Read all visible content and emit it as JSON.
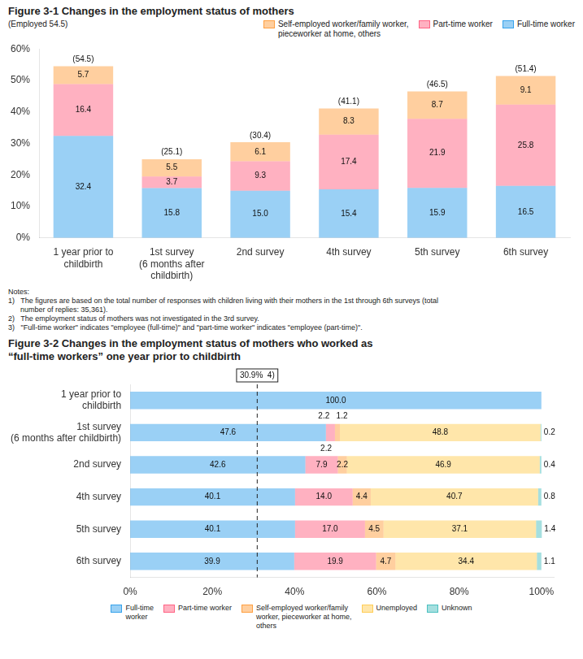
{
  "chart_data": [
    {
      "type": "bar",
      "title": "Figure 3-1  Changes in the employment status of mothers",
      "categories": [
        "1 year prior to\nchildbirth",
        "1st survey\n(6 months after\nchildbirth)",
        "2nd survey",
        "4th survey",
        "5th survey",
        "6th survey"
      ],
      "series": [
        {
          "name": "Full-time worker",
          "values": [
            32.4,
            15.8,
            15.0,
            15.4,
            15.9,
            16.5
          ],
          "value_labels": [
            "32.4",
            "15.8",
            "15.0",
            "15.4",
            "15.9",
            "16.5"
          ]
        },
        {
          "name": "Part-time worker",
          "values": [
            16.4,
            3.7,
            9.3,
            17.4,
            21.9,
            25.8
          ]
        },
        {
          "name": "Self-employed worker/family worker,\npieceworker at home, others",
          "values": [
            5.7,
            5.5,
            6.1,
            8.3,
            8.7,
            9.1
          ]
        }
      ],
      "totals": [
        54.5,
        25.1,
        30.4,
        41.1,
        46.5,
        51.4
      ],
      "total_labels": [
        "(54.5)",
        "(25.1)",
        "(30.4)",
        "(41.1)",
        "(46.5)",
        "(51.4)"
      ],
      "annotations": [
        "(Employed 54.5)"
      ],
      "notes": [
        "Notes:",
        "1)   The figures are based on the total number of responses with children living with their mothers in the 1st through 6th surveys (total",
        "      number of replies: 35,361).",
        "2)   The employment status of mothers was not investigated in the 3rd survey.",
        "3)   \"Full-time worker\" indicates \"employee (full-time)\" and \"part-time worker\" indicates \"employee (part-time)\"."
      ],
      "stacked": true,
      "data_labels": true,
      "grid": false,
      "legend": "upper right",
      "ylim": [
        0,
        60
      ],
      "yticks": [
        {
          "value": 0,
          "label": "0%"
        },
        {
          "value": 10,
          "label": "10%"
        },
        {
          "value": 20,
          "label": "20%"
        },
        {
          "value": 30,
          "label": "30%"
        },
        {
          "value": 40,
          "label": "40%"
        },
        {
          "value": 50,
          "label": "50%"
        },
        {
          "value": 60,
          "label": "60%"
        }
      ]
    },
    {
      "type": "bar",
      "orientation": "horizontal",
      "title": [
        "Figure 3-2  Changes in the employment status of mothers who worked as",
        "“full-time workers” one year prior to childbirth"
      ],
      "categories": [
        "1 year prior to\nchildbirth",
        "1st survey\n(6 months after childbirth)",
        "2nd survey",
        "4th survey",
        "5th survey",
        "6th survey"
      ],
      "series": [
        {
          "name": "Full-time\nworker",
          "values": [
            100.0,
            47.6,
            42.6,
            40.1,
            40.1,
            39.9
          ],
          "value_labels": [
            "100.0",
            "47.6",
            "42.6",
            "40.1",
            "40.1",
            "39.9"
          ]
        },
        {
          "name": "Part-time worker",
          "values": [
            0.0,
            2.2,
            7.9,
            14.0,
            17.0,
            19.9
          ],
          "value_labels": [
            null,
            null,
            "7.9",
            "14.0",
            "17.0",
            "19.9"
          ]
        },
        {
          "name": "Self-employed worker/family\nworker, pieceworker at home,\nothers",
          "values": [
            0.0,
            1.2,
            2.2,
            4.4,
            4.5,
            4.7
          ],
          "value_labels": [
            null,
            null,
            "2.2",
            "4.4",
            "4.5",
            "4.7"
          ]
        },
        {
          "name": "Unemployed",
          "values": [
            0.0,
            48.8,
            46.9,
            40.7,
            37.1,
            34.4
          ],
          "value_labels": [
            null,
            "48.8",
            "46.9",
            "40.7",
            "37.1",
            "34.4"
          ]
        },
        {
          "name": "Unknown",
          "values": [
            0.0,
            0.2,
            0.4,
            0.8,
            1.4,
            1.1
          ],
          "value_labels": [
            null,
            "0.2",
            "0.4",
            "0.8",
            "1.4",
            "1.1"
          ]
        }
      ],
      "annotations": [
        "2.2   1.2",
        "2.2"
      ],
      "reference_line": {
        "value": 30.9,
        "label": "30.9%  4)"
      },
      "stacked": true,
      "data_labels": true,
      "grid": false,
      "legend": "lower center",
      "xlim": [
        0,
        103
      ],
      "xticks": [
        {
          "value": 0,
          "label": "0%"
        },
        {
          "value": 20,
          "label": "20%"
        },
        {
          "value": 40,
          "label": "40%"
        },
        {
          "value": 60,
          "label": "60%"
        },
        {
          "value": 80,
          "label": "80%"
        },
        {
          "value": 100,
          "label": "100%"
        }
      ]
    }
  ]
}
